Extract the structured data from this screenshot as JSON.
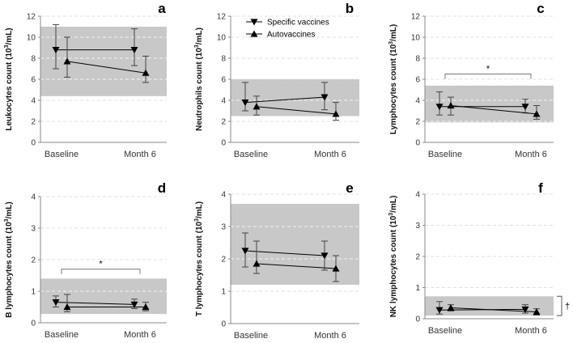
{
  "chart_data": [
    {
      "id": "a",
      "type": "line",
      "panel_label": "a",
      "ylabel_base": "Leukocytes count (10",
      "ylabel_exp": "3",
      "ylabel_tail": "/mL)",
      "ylim": [
        0,
        12
      ],
      "yticks": [
        0,
        2,
        4,
        6,
        8,
        10,
        12
      ],
      "categories": [
        "Baseline",
        "Month 6"
      ],
      "reference_range": [
        4.4,
        11.0
      ],
      "series": [
        {
          "name": "Specific vaccines",
          "marker": "down",
          "values": [
            8.8,
            8.8
          ],
          "err_low": [
            7.0,
            7.3
          ],
          "err_high": [
            11.2,
            10.8
          ]
        },
        {
          "name": "Autovaccines",
          "marker": "up",
          "values": [
            7.7,
            6.6
          ],
          "err_low": [
            6.2,
            5.7
          ],
          "err_high": [
            10.0,
            8.2
          ]
        }
      ]
    },
    {
      "id": "b",
      "type": "line",
      "panel_label": "b",
      "ylabel_base": "Neutrophils count (10",
      "ylabel_exp": "3",
      "ylabel_tail": "/mL)",
      "ylim": [
        0,
        12
      ],
      "yticks": [
        0,
        2,
        4,
        6,
        8,
        10,
        12
      ],
      "categories": [
        "Baseline",
        "Month 6"
      ],
      "reference_range": [
        2.5,
        6.0
      ],
      "series": [
        {
          "name": "Specific vaccines",
          "marker": "down",
          "values": [
            3.8,
            4.3
          ],
          "err_low": [
            3.0,
            3.1
          ],
          "err_high": [
            5.7,
            5.7
          ]
        },
        {
          "name": "Autovaccines",
          "marker": "up",
          "values": [
            3.4,
            2.7
          ],
          "err_low": [
            2.6,
            2.1
          ],
          "err_high": [
            4.4,
            3.8
          ]
        }
      ]
    },
    {
      "id": "c",
      "type": "line",
      "panel_label": "c",
      "ylabel_base": "Lymphocytes count (10",
      "ylabel_exp": "3",
      "ylabel_tail": "/mL)",
      "ylim": [
        0,
        12
      ],
      "yticks": [
        0,
        2,
        4,
        6,
        8,
        10,
        12
      ],
      "categories": [
        "Baseline",
        "Month 6"
      ],
      "reference_range": [
        1.9,
        5.4
      ],
      "significance": {
        "label": "*",
        "level": 6.5
      },
      "series": [
        {
          "name": "Specific vaccines",
          "marker": "down",
          "values": [
            3.4,
            3.4
          ],
          "err_low": [
            2.6,
            2.8
          ],
          "err_high": [
            4.8,
            4.1
          ]
        },
        {
          "name": "Autovaccines",
          "marker": "up",
          "values": [
            3.5,
            2.7
          ],
          "err_low": [
            2.6,
            2.2
          ],
          "err_high": [
            4.3,
            3.5
          ]
        }
      ]
    },
    {
      "id": "d",
      "type": "line",
      "panel_label": "d",
      "ylabel_base": "B lymphocytes count (10",
      "ylabel_exp": "3",
      "ylabel_tail": "/mL)",
      "ylim": [
        0,
        4
      ],
      "yticks": [
        0,
        1,
        2,
        3,
        4
      ],
      "categories": [
        "Baseline",
        "Month 6"
      ],
      "reference_range": [
        0.28,
        1.4
      ],
      "significance": {
        "label": "*",
        "level": 1.7
      },
      "series": [
        {
          "name": "Specific vaccines",
          "marker": "down",
          "values": [
            0.65,
            0.58
          ],
          "err_low": [
            0.5,
            0.45
          ],
          "err_high": [
            0.85,
            0.75
          ]
        },
        {
          "name": "Autovaccines",
          "marker": "up",
          "values": [
            0.5,
            0.5
          ],
          "err_low": [
            0.35,
            0.38
          ],
          "err_high": [
            0.9,
            0.65
          ]
        }
      ]
    },
    {
      "id": "e",
      "type": "line",
      "panel_label": "e",
      "ylabel_base": "T lymphocytes count (10",
      "ylabel_exp": "3",
      "ylabel_tail": "/mL)",
      "ylim": [
        0,
        4
      ],
      "yticks": [
        0,
        1,
        2,
        3,
        4
      ],
      "categories": [
        "Baseline",
        "Month 6"
      ],
      "reference_range": [
        1.2,
        3.7
      ],
      "series": [
        {
          "name": "Specific vaccines",
          "marker": "down",
          "values": [
            2.25,
            2.1
          ],
          "err_low": [
            1.75,
            1.65
          ],
          "err_high": [
            2.8,
            2.55
          ]
        },
        {
          "name": "Autovaccines",
          "marker": "up",
          "values": [
            1.85,
            1.7
          ],
          "err_low": [
            1.55,
            1.3
          ],
          "err_high": [
            2.55,
            2.1
          ]
        }
      ]
    },
    {
      "id": "f",
      "type": "line",
      "panel_label": "f",
      "ylabel_base": "NK lymphocytes count (10",
      "ylabel_exp": "3",
      "ylabel_tail": "/mL)",
      "ylim": [
        0,
        4
      ],
      "yticks": [
        0,
        1,
        2,
        3,
        4
      ],
      "categories": [
        "Baseline",
        "Month 6"
      ],
      "reference_range": [
        0.1,
        0.72
      ],
      "side_note": "†",
      "series": [
        {
          "name": "Specific vaccines",
          "marker": "down",
          "values": [
            0.28,
            0.3
          ],
          "err_low": [
            0.15,
            0.18
          ],
          "err_high": [
            0.55,
            0.45
          ]
        },
        {
          "name": "Autovaccines",
          "marker": "up",
          "values": [
            0.35,
            0.22
          ],
          "err_low": [
            0.25,
            0.12
          ],
          "err_high": [
            0.45,
            0.32
          ]
        }
      ]
    }
  ],
  "legend": {
    "entries": [
      {
        "label": "Specific vaccines",
        "marker": "down"
      },
      {
        "label": "Autovaccines",
        "marker": "up"
      }
    ]
  },
  "colors": {
    "band": "#c8c8c8",
    "ink": "#000000",
    "grid": "#ffffff",
    "axis": "#888888"
  }
}
